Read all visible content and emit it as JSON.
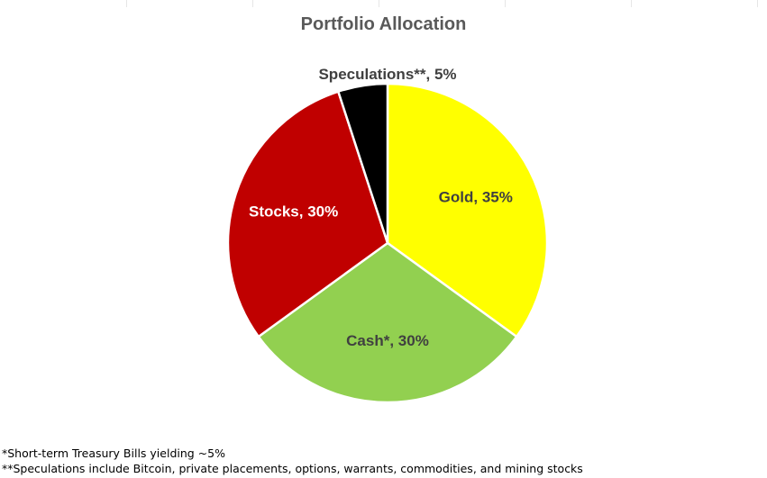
{
  "chart_data": {
    "type": "pie",
    "title": "Portfolio Allocation",
    "start": "12 o'clock",
    "direction": "clockwise",
    "slices": [
      {
        "label": "Gold",
        "value": 35,
        "data_label": "Gold, 35%",
        "color": "#FFFF00",
        "label_color": "#404040",
        "label_position": "inside"
      },
      {
        "label": "Cash*",
        "value": 30,
        "data_label": "Cash*, 30%",
        "color": "#92D050",
        "label_color": "#404040",
        "label_position": "inside"
      },
      {
        "label": "Stocks",
        "value": 30,
        "data_label": "Stocks, 30%",
        "color": "#C00000",
        "label_color": "#FFFFFF",
        "label_position": "inside"
      },
      {
        "label": "Speculations**",
        "value": 5,
        "data_label": "Speculations**, 5%",
        "color": "#000000",
        "label_color": "#404040",
        "label_position": "outside"
      }
    ]
  },
  "footnotes": [
    "*Short-term Treasury Bills yielding ~5%",
    "**Speculations include Bitcoin, private placements, options, warrants, commodities, and mining stocks"
  ]
}
